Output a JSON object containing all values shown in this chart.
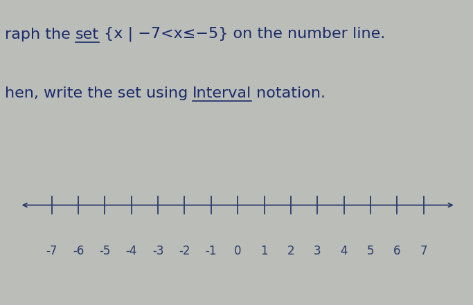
{
  "line1_parts": [
    [
      "raph the ",
      false,
      false
    ],
    [
      "set",
      true,
      false
    ],
    [
      " {x | −7<x≤−5} on the number line.",
      false,
      false
    ]
  ],
  "line2_parts": [
    [
      "hen, write the set using ",
      false,
      false
    ],
    [
      "Interval",
      true,
      false
    ],
    [
      " notation.",
      false,
      false
    ]
  ],
  "tick_positions": [
    -7,
    -6,
    -5,
    -4,
    -3,
    -2,
    -1,
    0,
    1,
    2,
    3,
    4,
    5,
    6,
    7
  ],
  "tick_labels": [
    "-7",
    "-6",
    "-5",
    "-4",
    "-3",
    "-2",
    "-1",
    "0",
    "1",
    "2",
    "3",
    "4",
    "5",
    "6",
    "7"
  ],
  "fig_bg_color": "#bbbdb8",
  "box_facecolor": "#d4d8d2",
  "box_edgecolor": "#4a5a7a",
  "axis_line_color": "#2a3a6a",
  "tick_color": "#2a3a6a",
  "label_color": "#2a3a6a",
  "text_color": "#1a2a6a",
  "underline_color": "#1a2a6a",
  "font_size_text": 16,
  "font_size_ticks": 12,
  "xlim_left": -8.5,
  "xlim_right": 8.5
}
